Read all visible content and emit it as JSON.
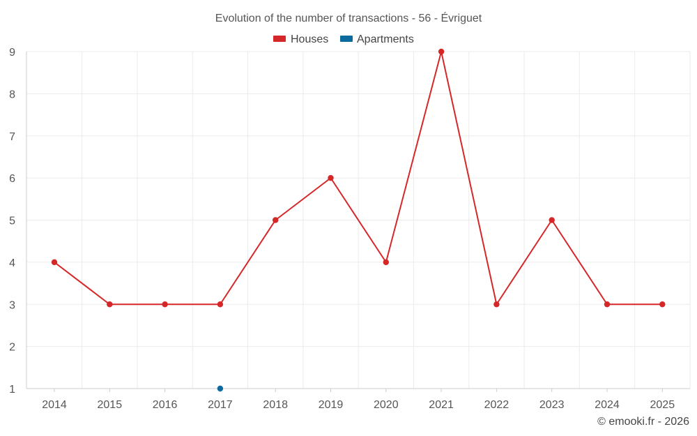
{
  "colors": {
    "houses": "#d62728",
    "apartments": "#0b6b9f"
  },
  "credit": "© emooki.fr - 2026",
  "chart_data": {
    "type": "line",
    "title": "Evolution of the number of transactions - 56 - Évriguet",
    "xlabel": "",
    "ylabel": "",
    "categories": [
      "2014",
      "2015",
      "2016",
      "2017",
      "2018",
      "2019",
      "2020",
      "2021",
      "2022",
      "2023",
      "2024",
      "2025"
    ],
    "ylim": [
      1,
      9
    ],
    "yticks": [
      1,
      2,
      3,
      4,
      5,
      6,
      7,
      8,
      9
    ],
    "grid": true,
    "legend_position": "top-center",
    "series": [
      {
        "name": "Houses",
        "color_key": "houses",
        "values": [
          4,
          3,
          3,
          3,
          5,
          6,
          4,
          9,
          3,
          5,
          3,
          3
        ]
      },
      {
        "name": "Apartments",
        "color_key": "apartments",
        "values": [
          null,
          null,
          null,
          1,
          null,
          null,
          null,
          null,
          null,
          null,
          null,
          null
        ]
      }
    ]
  }
}
